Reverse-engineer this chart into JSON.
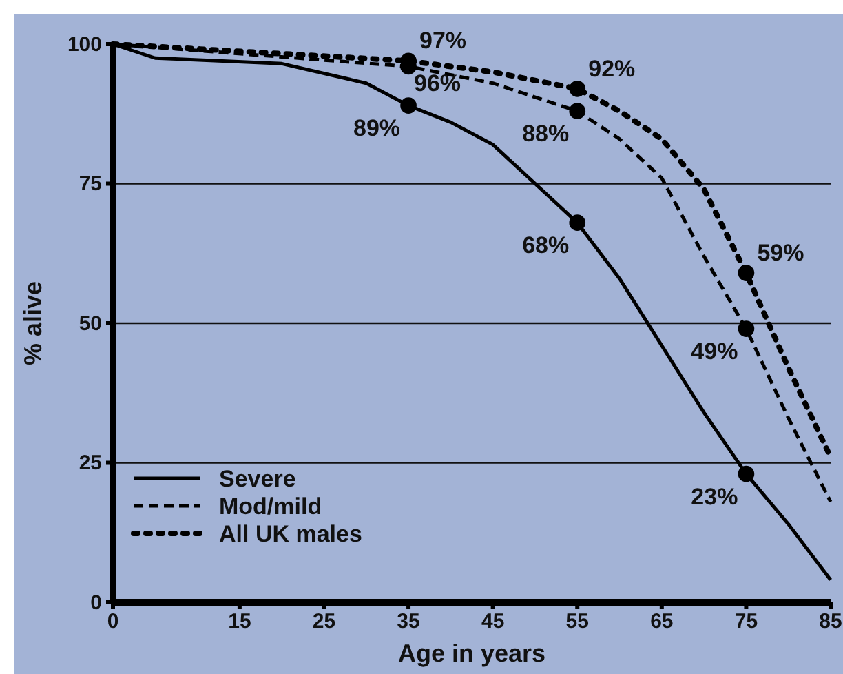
{
  "chart_data": {
    "type": "line",
    "xlabel": "Age in years",
    "ylabel": "% alive",
    "xlim": [
      0,
      85
    ],
    "xticks": [
      0,
      15,
      25,
      35,
      45,
      55,
      65,
      75,
      85
    ],
    "ylim": [
      0,
      100
    ],
    "yticks": [
      0,
      25,
      50,
      75,
      100
    ],
    "grid": "y",
    "legend": "bottom left",
    "marker": "none",
    "series": [
      {
        "name": "Severe",
        "color": "#000000",
        "line_style": "solid",
        "x": [
          0,
          5,
          20,
          30,
          35,
          40,
          45,
          55,
          60,
          65,
          70,
          75,
          80,
          85
        ],
        "values": [
          100,
          97.5,
          96.5,
          93,
          89,
          86,
          82,
          68,
          58,
          46,
          34,
          23,
          14,
          4
        ]
      },
      {
        "name": "Mod/mild",
        "color": "#000000",
        "line_style": "dashed",
        "x": [
          0,
          35,
          45,
          55,
          60,
          65,
          70,
          75,
          80,
          85
        ],
        "values": [
          100,
          96,
          93,
          88,
          83,
          76,
          62,
          49,
          33,
          18
        ]
      },
      {
        "name": "All UK males",
        "color": "#000000",
        "line_style": "dotted",
        "x": [
          0,
          35,
          45,
          55,
          60,
          65,
          70,
          75,
          80,
          85
        ],
        "values": [
          100,
          97,
          95,
          92,
          88,
          83,
          74,
          59,
          42,
          26
        ]
      },
      {
        "type": "scatter",
        "color": "#000000",
        "marker": "circle",
        "x": [
          35,
          55,
          75
        ],
        "values": [
          89,
          68,
          23
        ],
        "value_labels": [
          "89%",
          "68%",
          "23%"
        ]
      },
      {
        "type": "scatter",
        "color": "#000000",
        "marker": "circle",
        "x": [
          35,
          55,
          75
        ],
        "values": [
          96,
          88,
          49
        ],
        "value_labels": [
          "96%",
          "88%",
          "49%"
        ]
      },
      {
        "type": "scatter",
        "color": "#000000",
        "marker": "circle",
        "x": [
          35,
          55,
          75
        ],
        "values": [
          97,
          92,
          59
        ],
        "value_labels": [
          "97%",
          "92%",
          "59%"
        ]
      }
    ]
  }
}
